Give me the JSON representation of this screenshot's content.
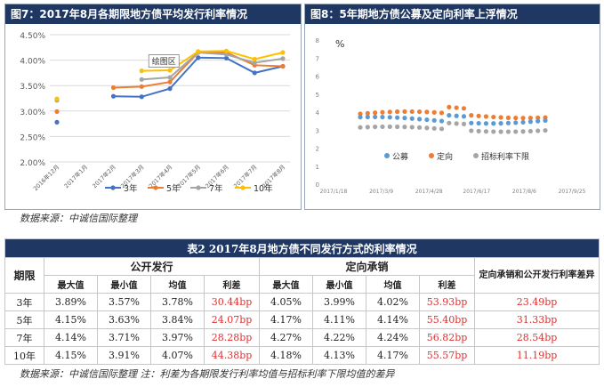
{
  "left_chart": {
    "title": "图7：2017年8月各期限地方债平均发行利率情况",
    "tooltip": "绘图区",
    "chart_data": {
      "type": "line",
      "categories": [
        "2016年12月",
        "2017年1月",
        "2017年2月",
        "2017年3月",
        "2017年4月",
        "2017年5月",
        "2017年6月",
        "2017年7月",
        "2017年8月"
      ],
      "yticks": [
        "2.00%",
        "2.50%",
        "3.00%",
        "3.50%",
        "4.00%",
        "4.50%"
      ],
      "ylim": [
        2.0,
        4.5
      ],
      "legend_position": "bottom",
      "series": [
        {
          "name": "3年",
          "color": "#4472c4",
          "values": [
            2.78,
            null,
            3.29,
            3.28,
            3.44,
            4.05,
            4.04,
            3.75,
            3.88
          ]
        },
        {
          "name": "5年",
          "color": "#ed7d31",
          "values": [
            2.99,
            null,
            3.46,
            3.48,
            3.57,
            4.15,
            4.15,
            3.9,
            3.88
          ]
        },
        {
          "name": "7年",
          "color": "#a5a5a5",
          "values": [
            3.21,
            null,
            null,
            3.62,
            3.66,
            4.15,
            4.11,
            3.95,
            4.03
          ]
        },
        {
          "name": "10年",
          "color": "#ffc000",
          "values": [
            3.24,
            null,
            null,
            3.79,
            3.8,
            4.17,
            4.18,
            4.02,
            4.15
          ]
        }
      ]
    }
  },
  "right_chart": {
    "title": "图8：5年期地方债公募及定向利率上浮情况",
    "unit": "%",
    "chart_data": {
      "type": "scatter",
      "xticks": [
        "2017/1/18",
        "2017/3/9",
        "2017/4/28",
        "2017/6/17",
        "2017/8/6",
        "2017/9/25"
      ],
      "yticks": [
        "0",
        "1",
        "2",
        "3",
        "4",
        "5",
        "6",
        "7",
        "8"
      ],
      "ylim": [
        0,
        8
      ],
      "legend_position": "bottom",
      "series": [
        {
          "name": "公募",
          "color": "#5b9bd5"
        },
        {
          "name": "定向",
          "color": "#ed7d31"
        },
        {
          "name": "招标利率下限",
          "color": "#a5a5a5"
        }
      ]
    }
  },
  "source_top": "数据来源：中诚信国际整理",
  "table": {
    "caption": "表2  2017年8月地方债不同发行方式的利率情况",
    "h_term": "期限",
    "h_public": "公开发行",
    "h_directed": "定向承销",
    "h_diff": "定向承销和公开发行利率差异",
    "sub": [
      "最大值",
      "最小值",
      "均值",
      "利差",
      "最大值",
      "最小值",
      "均值",
      "利差"
    ],
    "rows": [
      {
        "term": "3年",
        "c": [
          "3.89%",
          "3.57%",
          "3.78%",
          "30.44bp",
          "4.05%",
          "3.99%",
          "4.02%",
          "53.93bp",
          "23.49bp"
        ]
      },
      {
        "term": "5年",
        "c": [
          "4.15%",
          "3.63%",
          "3.84%",
          "24.07bp",
          "4.17%",
          "4.11%",
          "4.14%",
          "55.40bp",
          "31.33bp"
        ]
      },
      {
        "term": "7年",
        "c": [
          "4.14%",
          "3.71%",
          "3.97%",
          "28.28bp",
          "4.27%",
          "4.22%",
          "4.24%",
          "56.82bp",
          "28.54bp"
        ]
      },
      {
        "term": "10年",
        "c": [
          "4.15%",
          "3.91%",
          "4.07%",
          "44.38bp",
          "4.18%",
          "4.13%",
          "4.17%",
          "55.57bp",
          "11.19bp"
        ]
      }
    ]
  },
  "source_bottom": "数据来源：中诚信国际整理    注：利差为各期限发行利率均值与招标利率下限均值的差异"
}
